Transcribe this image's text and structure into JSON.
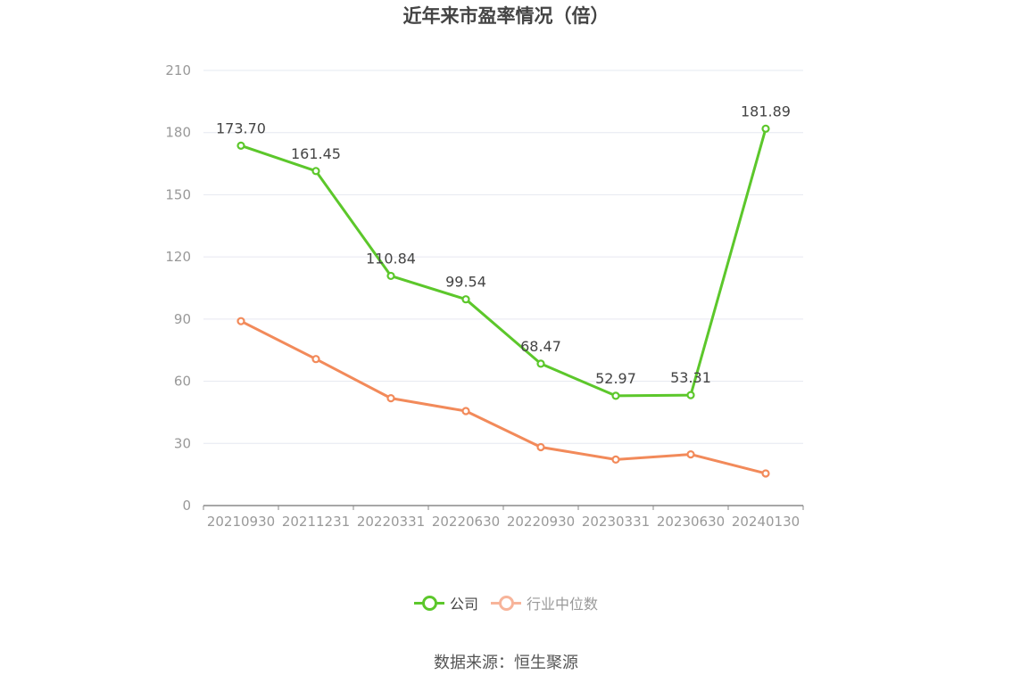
{
  "title": "近年来市盈率情况（倍）",
  "source": "数据来源：恒生聚源",
  "chart_data": {
    "type": "line",
    "categories": [
      "20210930",
      "20211231",
      "20220331",
      "20220630",
      "20220930",
      "20230331",
      "20230630",
      "20240130"
    ],
    "series": [
      {
        "name": "公司",
        "values": [
          173.7,
          161.45,
          110.84,
          99.54,
          68.47,
          52.97,
          53.31,
          181.89
        ],
        "color": "#5cc72b",
        "labels": [
          "173.70",
          "161.45",
          "110.84",
          "99.54",
          "68.47",
          "52.97",
          "53.31",
          "181.89"
        ]
      },
      {
        "name": "行业中位数",
        "values": [
          89,
          70.7,
          51.8,
          45.6,
          28.2,
          22.2,
          24.7,
          15.5
        ],
        "color": "#f28a5a"
      }
    ],
    "y_ticks": [
      "0",
      "30",
      "60",
      "90",
      "120",
      "150",
      "180",
      "210"
    ],
    "ylim": [
      0,
      210
    ],
    "grid": true,
    "legend_position": "bottom"
  },
  "legend": [
    {
      "label": "公司",
      "color": "#5cc72b",
      "text_color": "#444444"
    },
    {
      "label": "行业中位数",
      "color": "#f7b49a",
      "text_color": "#999999"
    }
  ]
}
